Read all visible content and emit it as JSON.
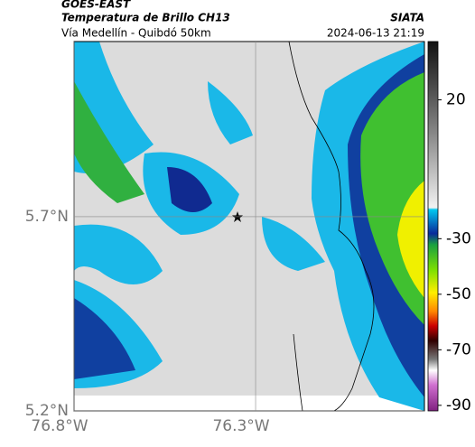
{
  "header": {
    "product": "GOES-EAST",
    "title": "Temperatura de Brillo CH13",
    "source": "SIATA",
    "subtitle": "Vía Medellín - Quibdó 50km",
    "datetime": "2024-06-13 21:19"
  },
  "map": {
    "lat_lim": [
      5.2,
      6.151
    ],
    "lon_lim": [
      -76.8,
      -75.835
    ],
    "lat_ticks": [
      {
        "value": 5.7,
        "label": "5.7°N"
      },
      {
        "value": 5.2,
        "label": "5.2°N"
      }
    ],
    "lon_ticks": [
      {
        "value": -76.8,
        "label": "76.8°W"
      },
      {
        "value": -76.3,
        "label": "76.3°W"
      }
    ]
  },
  "colorbar": {
    "lim": [
      41,
      -92
    ],
    "ticks": [
      20,
      -30,
      -50,
      -70,
      -90
    ]
  }
}
